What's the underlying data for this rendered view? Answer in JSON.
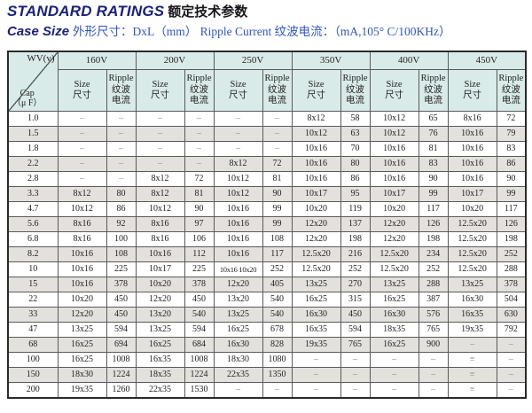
{
  "header": {
    "title_en": "STANDARD RATINGS",
    "title_zh": "额定技术参数",
    "subtitle_label": "Case Size",
    "subtitle_text": "外形尺寸：DxL（mm）  Ripple Current 纹波电流：（mA,105° C/100KHz）"
  },
  "table": {
    "corner_top": "WV(v)",
    "corner_bottom": "Cap\n（μ F）",
    "voltages": [
      "160V",
      "200V",
      "250V",
      "350V",
      "400V",
      "450V"
    ],
    "size_label": "Size\n尺寸",
    "ripple_label": "Ripple\n纹波\n电流",
    "rows": [
      {
        "cap": "1.0",
        "cells": [
          "–",
          "–",
          "–",
          "–",
          "–",
          "–",
          "8x12",
          "58",
          "10x12",
          "65",
          "8x16",
          "72"
        ]
      },
      {
        "cap": "1.5",
        "cells": [
          "–",
          "–",
          "–",
          "–",
          "–",
          "–",
          "10x12",
          "63",
          "10x12",
          "76",
          "10x16",
          "79"
        ]
      },
      {
        "cap": "1.8",
        "cells": [
          "–",
          "–",
          "–",
          "–",
          "–",
          "–",
          "10x16",
          "70",
          "10x16",
          "81",
          "10x16",
          "83"
        ]
      },
      {
        "cap": "2.2",
        "cells": [
          "–",
          "–",
          "–",
          "–",
          "8x12",
          "72",
          "10x16",
          "80",
          "10x16",
          "83",
          "10x16",
          "86"
        ]
      },
      {
        "cap": "2.8",
        "cells": [
          "–",
          "–",
          "8x12",
          "72",
          "10x12",
          "81",
          "10x16",
          "86",
          "10x16",
          "90",
          "10x16",
          "90"
        ]
      },
      {
        "cap": "3.3",
        "cells": [
          "8x12",
          "80",
          "8x12",
          "81",
          "10x12",
          "90",
          "10x17",
          "95",
          "10x17",
          "99",
          "10x17",
          "99"
        ]
      },
      {
        "cap": "4.7",
        "cells": [
          "10x12",
          "86",
          "10x12",
          "90",
          "10x16",
          "99",
          "10x20",
          "119",
          "10x20",
          "117",
          "10x20",
          "117"
        ]
      },
      {
        "cap": "5.6",
        "cells": [
          "8x16",
          "92",
          "8x16",
          "97",
          "10x16",
          "99",
          "12x20",
          "137",
          "12x20",
          "126",
          "12.5x20",
          "126"
        ]
      },
      {
        "cap": "6.8",
        "cells": [
          "8x16",
          "100",
          "8x16",
          "106",
          "10x16",
          "108",
          "12x20",
          "198",
          "12x20",
          "198",
          "12.5x20",
          "198"
        ]
      },
      {
        "cap": "8.2",
        "cells": [
          "10x16",
          "108",
          "10x16",
          "112",
          "10x16",
          "117",
          "12.5x20",
          "216",
          "12.5x20",
          "234",
          "12.5x20",
          "252"
        ]
      },
      {
        "cap": "10",
        "cells": [
          "10x16",
          "225",
          "10x17",
          "225",
          "10x16 10x20",
          "252",
          "12.5x20",
          "252",
          "12.5x20",
          "252",
          "12.5x20",
          "288"
        ]
      },
      {
        "cap": "15",
        "cells": [
          "10x16",
          "378",
          "10x20",
          "378",
          "12x20",
          "405",
          "13x25",
          "270",
          "13x25",
          "288",
          "13x25",
          "378"
        ]
      },
      {
        "cap": "22",
        "cells": [
          "10x20",
          "450",
          "12x20",
          "450",
          "13x20",
          "540",
          "16x25",
          "315",
          "16x25",
          "387",
          "16x30",
          "504"
        ]
      },
      {
        "cap": "33",
        "cells": [
          "12x20",
          "450",
          "13x20",
          "540",
          "13x25",
          "540",
          "16x30",
          "450",
          "16x30",
          "576",
          "16x35",
          "630"
        ]
      },
      {
        "cap": "47",
        "cells": [
          "13x25",
          "594",
          "13x25",
          "594",
          "16x25",
          "678",
          "16x35",
          "594",
          "18x35",
          "765",
          "19x35",
          "792"
        ]
      },
      {
        "cap": "68",
        "cells": [
          "16x25",
          "694",
          "16x25",
          "684",
          "16x30",
          "828",
          "19x35",
          "765",
          "16x25",
          "900",
          "–",
          "–"
        ]
      },
      {
        "cap": "100",
        "cells": [
          "16x25",
          "1008",
          "16x35",
          "1008",
          "18x30",
          "1080",
          "–",
          "–",
          "–",
          "–",
          "≡",
          "–"
        ]
      },
      {
        "cap": "150",
        "cells": [
          "18x30",
          "1224",
          "18x35",
          "1224",
          "22x35",
          "1350",
          "–",
          "–",
          "–",
          "–",
          "≡",
          "–"
        ]
      },
      {
        "cap": "200",
        "cells": [
          "19x35",
          "1260",
          "22x35",
          "1530",
          "–",
          "–",
          "–",
          "–",
          "–",
          "–",
          "≡",
          "–"
        ]
      }
    ]
  }
}
